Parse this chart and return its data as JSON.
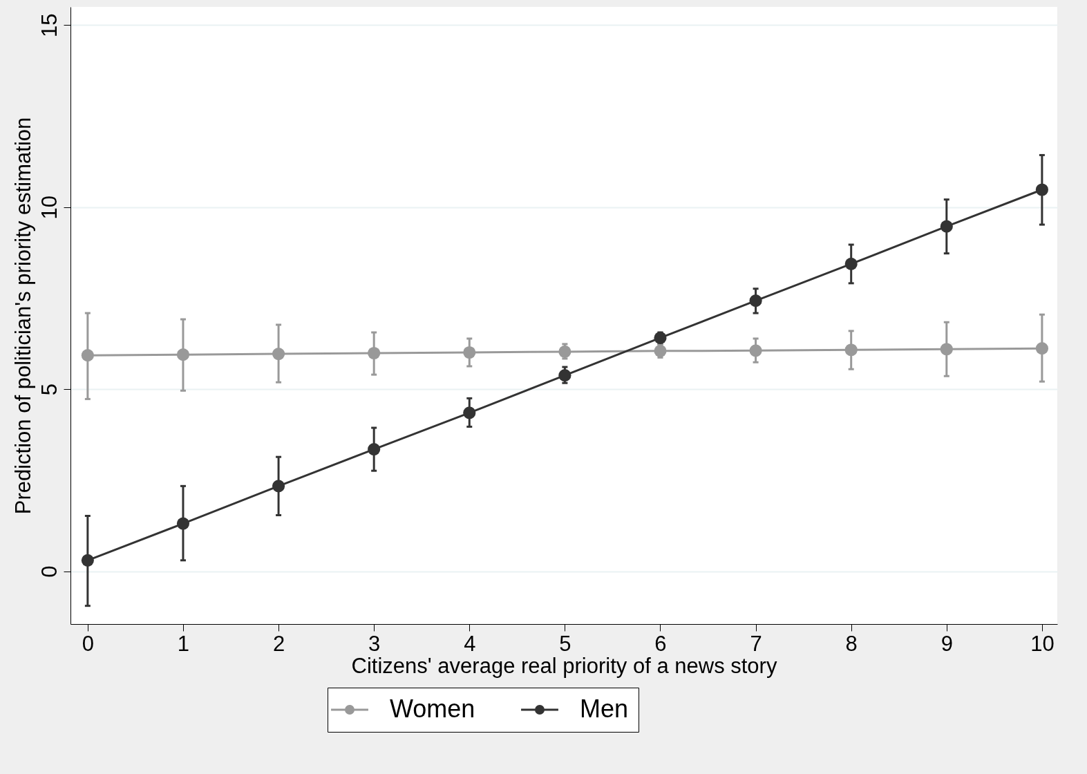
{
  "chart_data": {
    "type": "line",
    "xlabel": "Citizens' average real priority of a news story",
    "ylabel": "Prediction of politician's priority estimation",
    "x": [
      0,
      1,
      2,
      3,
      4,
      5,
      6,
      7,
      8,
      9,
      10
    ],
    "xlim": [
      -0.18,
      10.16
    ],
    "xticks": [
      0,
      1,
      2,
      3,
      4,
      5,
      6,
      7,
      8,
      9,
      10
    ],
    "ylim": [
      -1.45,
      15.5
    ],
    "yticks": [
      0,
      5,
      10,
      15
    ],
    "grid": "y",
    "legend": "bottom",
    "marker": "circle",
    "line_style": "solid",
    "series": [
      {
        "name": "Women",
        "color": "#999999",
        "values": [
          5.93,
          5.95,
          5.97,
          5.99,
          6.01,
          6.03,
          6.05,
          6.06,
          6.08,
          6.1,
          6.12
        ],
        "errors": [
          [
            4.73,
            7.09
          ],
          [
            4.96,
            6.92
          ],
          [
            5.19,
            6.77
          ],
          [
            5.4,
            6.56
          ],
          [
            5.63,
            6.39
          ],
          [
            5.84,
            6.24
          ],
          [
            5.87,
            6.22
          ],
          [
            5.74,
            6.39
          ],
          [
            5.55,
            6.6
          ],
          [
            5.36,
            6.84
          ],
          [
            5.21,
            7.05
          ]
        ]
      },
      {
        "name": "Men",
        "color": "#333333",
        "values": [
          0.3,
          1.31,
          2.34,
          3.35,
          4.35,
          5.38,
          6.41,
          7.43,
          8.44,
          9.47,
          10.48
        ],
        "errors": [
          [
            -0.95,
            1.52
          ],
          [
            0.3,
            2.34
          ],
          [
            1.54,
            3.14
          ],
          [
            2.76,
            3.94
          ],
          [
            3.97,
            4.75
          ],
          [
            5.17,
            5.61
          ],
          [
            6.25,
            6.56
          ],
          [
            7.09,
            7.76
          ],
          [
            7.91,
            8.97
          ],
          [
            8.73,
            10.21
          ],
          [
            9.52,
            11.43
          ]
        ]
      }
    ]
  }
}
